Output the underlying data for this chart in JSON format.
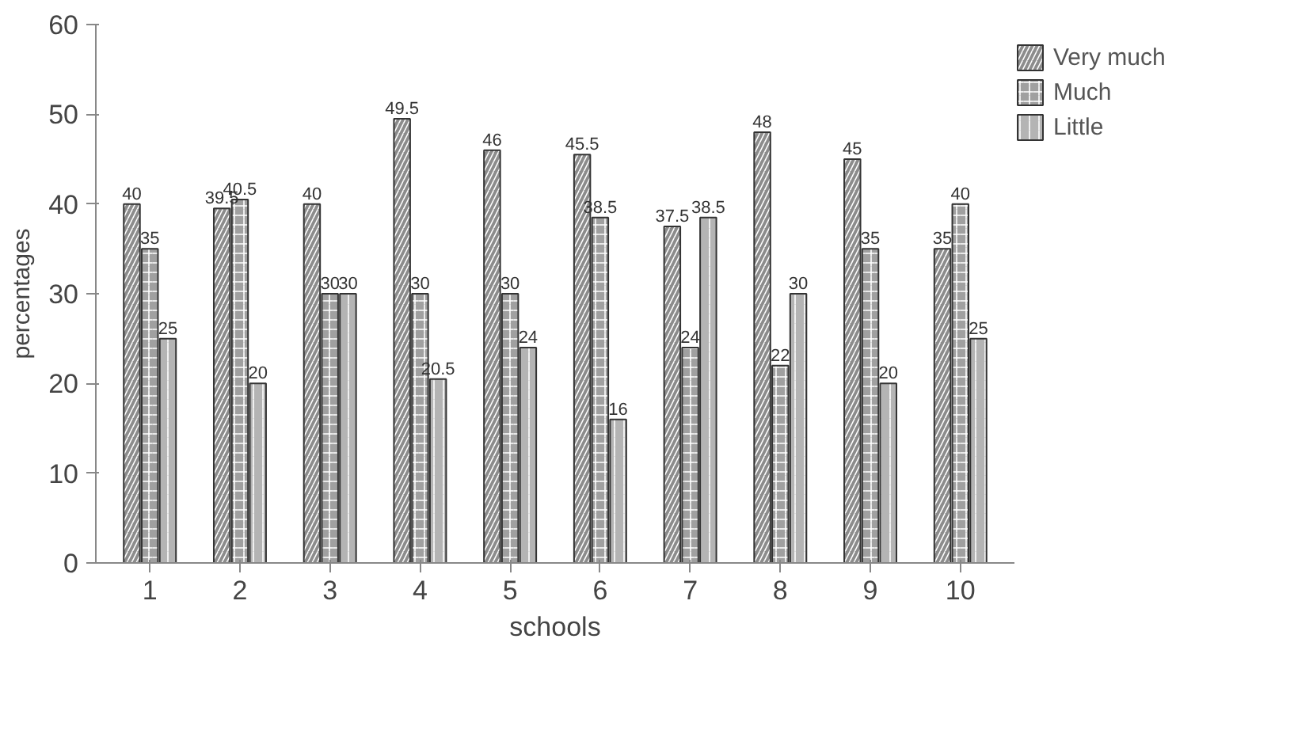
{
  "chart_data": {
    "type": "bar",
    "xlabel": "schools",
    "ylabel": "percentages",
    "categories": [
      "1",
      "2",
      "3",
      "4",
      "5",
      "6",
      "7",
      "8",
      "9",
      "10"
    ],
    "series": [
      {
        "name": "Very much",
        "color": "#8c8c8c",
        "values": [
          40,
          39.5,
          40,
          49.5,
          46,
          45.5,
          37.5,
          48,
          45,
          35
        ]
      },
      {
        "name": "Much",
        "color": "#a0a0a0",
        "values": [
          35,
          40.5,
          30,
          30,
          30,
          38.5,
          24,
          22,
          35,
          40
        ]
      },
      {
        "name": "Little",
        "color": "#b4b4b4",
        "values": [
          25,
          20,
          30,
          20.5,
          24,
          16,
          38.5,
          30,
          20,
          25
        ]
      }
    ],
    "ylim": [
      0,
      60
    ],
    "yticks": [
      0,
      10,
      20,
      30,
      40,
      50,
      60
    ],
    "grid": false,
    "legend": "top right",
    "data_labels": true
  }
}
